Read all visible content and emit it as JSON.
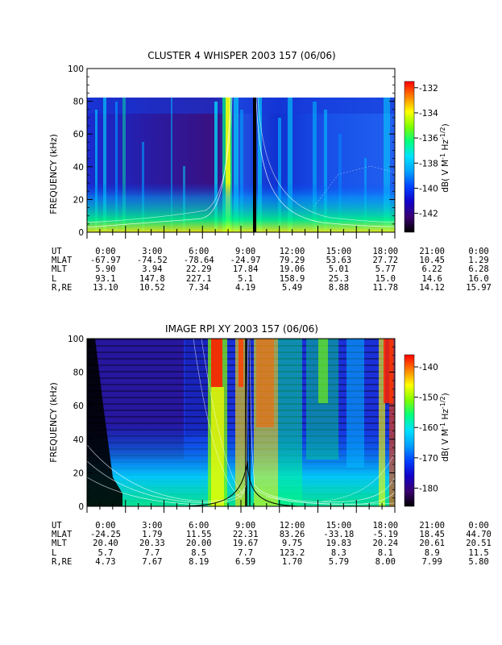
{
  "chart_data": [
    {
      "type": "heatmap",
      "title": "CLUSTER 4 WHISPER 2003 157 (06/06)",
      "ylabel": "FREQUENCY (kHz)",
      "ylim": [
        0,
        100
      ],
      "yticks": [
        "0",
        "20",
        "40",
        "60",
        "80",
        "100"
      ],
      "data_ceiling_khz": 80,
      "colorbar": {
        "label": "dB( V M^-1 Hz^-1/2 )",
        "range": [
          -143.5,
          -131.5
        ],
        "ticks": [
          "-132",
          "-134",
          "-136",
          "-138",
          "-140",
          "-142"
        ],
        "colormap": [
          "#000000",
          "#3a0070",
          "#1400c8",
          "#0040ff",
          "#00a0ff",
          "#00e0ff",
          "#00ff80",
          "#80ff00",
          "#ffff00",
          "#ff8000",
          "#ff0000"
        ]
      },
      "ephemeris": {
        "labels": [
          "UT",
          "MLAT",
          "MLT",
          "L",
          "R,RE"
        ],
        "UT": [
          "0:00",
          "3:00",
          "6:00",
          "9:00",
          "12:00",
          "15:00",
          "18:00",
          "21:00",
          "0:00"
        ],
        "MLAT": [
          "-67.97",
          "-74.52",
          "-78.64",
          "-24.97",
          "79.29",
          "53.63",
          "27.72",
          "10.45",
          "1.29"
        ],
        "MLT": [
          "5.90",
          "3.94",
          "22.29",
          "17.84",
          "19.06",
          "5.01",
          "5.77",
          "6.22",
          "6.28"
        ],
        "L": [
          "93.1",
          "147.8",
          "227.1",
          "5.1",
          "158.9",
          "25.3",
          "15.0",
          "14.6",
          "16.0"
        ],
        "R,RE": [
          "13.10",
          "10.52",
          "7.34",
          "4.19",
          "5.49",
          "8.88",
          "11.78",
          "14.12",
          "15.97"
        ]
      }
    },
    {
      "type": "heatmap",
      "title": "IMAGE RPI XY 2003 157 (06/06)",
      "ylabel": "FREQUENCY (kHz)",
      "ylim": [
        0,
        100
      ],
      "yticks": [
        "0",
        "20",
        "40",
        "60",
        "80",
        "100"
      ],
      "data_ceiling_khz": 100,
      "colorbar": {
        "label": "dB( V M^-1 Hz^-1/2 )",
        "range": [
          -186,
          -136
        ],
        "ticks": [
          "-140",
          "-150",
          "-160",
          "-170",
          "-180"
        ],
        "colormap": [
          "#000000",
          "#3a0070",
          "#1400c8",
          "#0040ff",
          "#00a0ff",
          "#00e0ff",
          "#00ff80",
          "#80ff00",
          "#ffff00",
          "#ff8000",
          "#ff0000"
        ]
      },
      "ephemeris": {
        "labels": [
          "UT",
          "MLAT",
          "MLT",
          "L",
          "R,RE"
        ],
        "UT": [
          "0:00",
          "3:00",
          "6:00",
          "9:00",
          "12:00",
          "15:00",
          "18:00",
          "21:00",
          "0:00"
        ],
        "MLAT": [
          "-24.25",
          "1.79",
          "11.55",
          "22.31",
          "83.26",
          "-33.18",
          "-5.19",
          "18.45",
          "44.70"
        ],
        "MLT": [
          "20.40",
          "20.33",
          "20.00",
          "19.67",
          "9.75",
          "19.83",
          "20.24",
          "20.61",
          "20.51"
        ],
        "L": [
          "5.7",
          "7.7",
          "8.5",
          "7.7",
          "123.2",
          "8.3",
          "8.1",
          "8.9",
          "11.5"
        ],
        "R,RE": [
          "4.73",
          "7.67",
          "8.19",
          "6.59",
          "1.70",
          "5.79",
          "8.00",
          "7.99",
          "5.80"
        ]
      }
    }
  ]
}
